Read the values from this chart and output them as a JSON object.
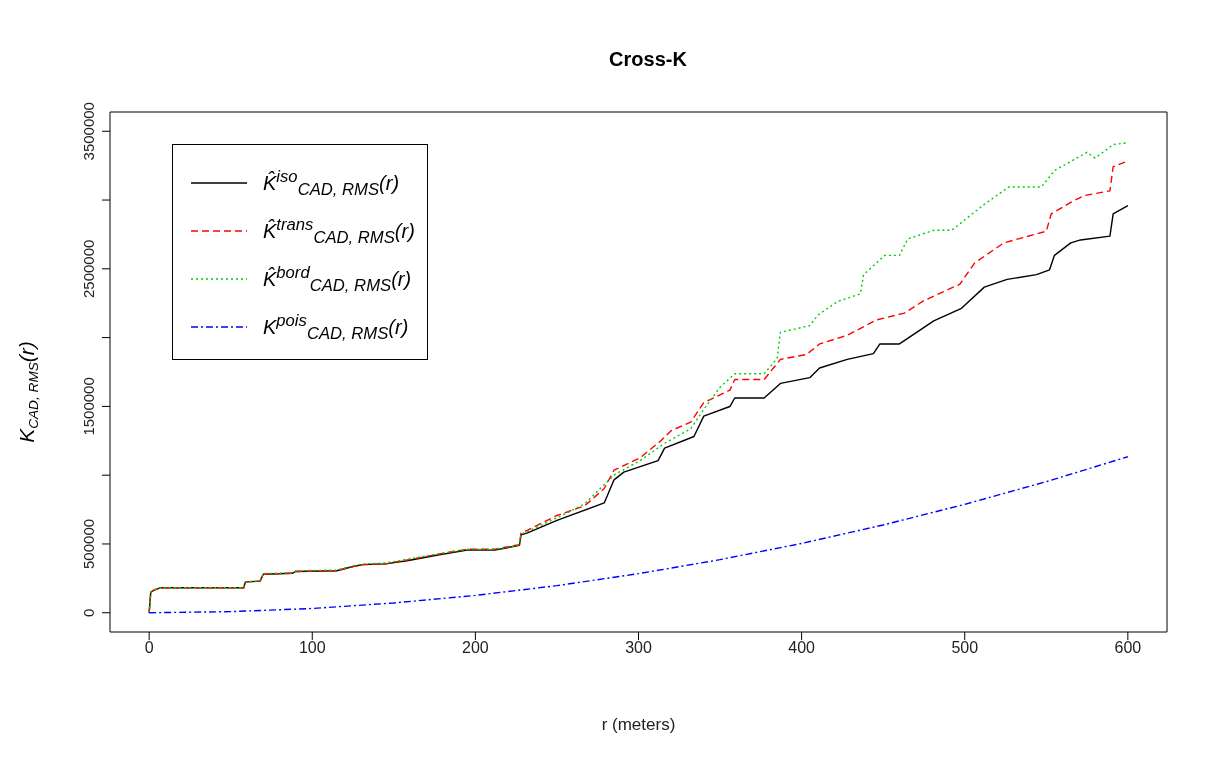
{
  "chart_data": {
    "type": "line",
    "title": "Cross-K",
    "xlabel": "r (meters)",
    "ylabel": "K$_{CAD, RMS}$(r)",
    "xlim": [
      -24,
      624
    ],
    "xticks": [
      0,
      100,
      200,
      300,
      400,
      500,
      600
    ],
    "ylim": [
      -140000,
      3640000
    ],
    "yticks": [
      0,
      500000,
      {
        "value": 1000000,
        "label": null
      },
      1500000,
      {
        "value": 2000000,
        "label": null
      },
      2500000,
      {
        "value": 3000000,
        "label": null
      },
      3500000
    ],
    "legend": "top left",
    "marker": "none",
    "series": [
      {
        "name": "K̂$^{iso}$$_{CAD, RMS}$(r)",
        "color": "#000000",
        "line_style": "solid",
        "x": [
          0,
          1,
          3,
          7,
          58,
          59,
          68,
          70,
          88,
          90,
          115,
          125,
          131,
          145,
          159,
          177,
          195,
          212,
          227,
          228,
          232,
          250,
          279,
          285,
          291,
          312,
          316,
          334,
          340,
          356,
          359,
          377,
          387,
          405,
          411,
          428,
          444,
          448,
          460,
          481,
          498,
          512,
          526,
          544,
          552,
          555,
          565,
          571,
          589,
          591,
          600
        ],
        "values": [
          0,
          150000,
          165000,
          182000,
          182000,
          224000,
          230000,
          280000,
          287000,
          300000,
          305000,
          336000,
          350000,
          355000,
          380000,
          420000,
          455000,
          455000,
          490000,
          567000,
          581000,
          672000,
          798000,
          966000,
          1022000,
          1106000,
          1197000,
          1281000,
          1429000,
          1499000,
          1561000,
          1561000,
          1667000,
          1709000,
          1779000,
          1842000,
          1884000,
          1954000,
          1954000,
          2122000,
          2213000,
          2367000,
          2423000,
          2458000,
          2493000,
          2598000,
          2689000,
          2710000,
          2738000,
          2899000,
          2960000
        ]
      },
      {
        "name": "K̂$^{trans}$$_{CAD, RMS}$(r)",
        "color": "#ff0000",
        "line_style": "dashed",
        "x": [
          0,
          1,
          3,
          7,
          58,
          59,
          68,
          70,
          88,
          90,
          115,
          125,
          131,
          145,
          159,
          177,
          195,
          212,
          227,
          228,
          232,
          250,
          267,
          279,
          285,
          301,
          314,
          320,
          332,
          340,
          356,
          359,
          377,
          387,
          403,
          411,
          428,
          446,
          463,
          475,
          497,
          506,
          524,
          550,
          553,
          565,
          573,
          589,
          591,
          600
        ],
        "values": [
          0,
          150000,
          165000,
          182000,
          182000,
          224000,
          230000,
          280000,
          287000,
          300000,
          305000,
          336000,
          350000,
          355000,
          385000,
          425000,
          462000,
          462000,
          495000,
          580000,
          600000,
          707000,
          777000,
          903000,
          1036000,
          1127000,
          1253000,
          1323000,
          1386000,
          1527000,
          1618000,
          1695000,
          1695000,
          1842000,
          1877000,
          1954000,
          2017000,
          2129000,
          2178000,
          2269000,
          2388000,
          2542000,
          2689000,
          2773000,
          2899000,
          2983000,
          3032000,
          3067000,
          3242000,
          3284000
        ]
      },
      {
        "name": "K̂$^{bord}$$_{CAD, RMS}$(r)",
        "color": "#00cc00",
        "line_style": "dotted",
        "x": [
          0,
          1,
          3,
          7,
          58,
          59,
          68,
          70,
          88,
          90,
          115,
          125,
          131,
          145,
          159,
          177,
          195,
          212,
          227,
          228,
          232,
          250,
          267,
          285,
          301,
          316,
          332,
          340,
          350,
          359,
          377,
          385,
          387,
          405,
          410,
          422,
          436,
          438,
          451,
          460,
          465,
          481,
          492,
          512,
          527,
          547,
          555,
          575,
          580,
          591,
          600
        ],
        "values": [
          0,
          150000,
          165000,
          182000,
          182000,
          224000,
          230000,
          285000,
          290000,
          305000,
          310000,
          340000,
          355000,
          362000,
          390000,
          428000,
          462000,
          462000,
          492000,
          570000,
          590000,
          690000,
          791000,
          1001000,
          1106000,
          1232000,
          1337000,
          1478000,
          1639000,
          1737000,
          1737000,
          1849000,
          2038000,
          2087000,
          2164000,
          2262000,
          2318000,
          2458000,
          2598000,
          2598000,
          2717000,
          2780000,
          2780000,
          2969000,
          3095000,
          3095000,
          3214000,
          3347000,
          3305000,
          3403000,
          3417000
        ]
      },
      {
        "name": "K$^{pois}$$_{CAD, RMS}$(r)",
        "color": "#0000ff",
        "line_style": "dashdot",
        "x": [
          0,
          50,
          100,
          150,
          200,
          250,
          300,
          350,
          400,
          450,
          500,
          550,
          600
        ],
        "values": [
          0,
          8000,
          31000,
          71000,
          126000,
          197000,
          284000,
          386000,
          504000,
          638000,
          788000,
          953000,
          1134000
        ]
      }
    ]
  }
}
